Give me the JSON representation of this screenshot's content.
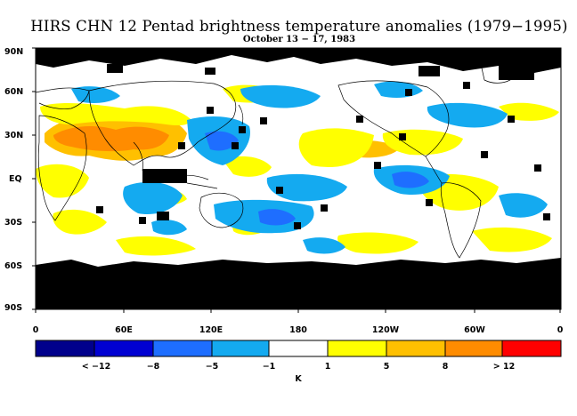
{
  "title": "HIRS CHN 12 Pentad brightness temperature anomalies (1979−1995)",
  "subtitle": "October 13 − 17, 1983",
  "lat_ticks": [
    "90N",
    "60N",
    "30N",
    "EQ",
    "30S",
    "60S",
    "90S"
  ],
  "lon_ticks": [
    "0",
    "60E",
    "120E",
    "180",
    "120W",
    "60W",
    "0"
  ],
  "colorbar": {
    "colors": [
      "#00008c",
      "#0000d2",
      "#1e6eff",
      "#14aaf0",
      "#ffffff",
      "#ffff00",
      "#ffc000",
      "#ff8c00",
      "#ff0000"
    ],
    "labels": [
      "< −12",
      "−8",
      "−5",
      "−1",
      "1",
      "5",
      "8",
      "> 12"
    ],
    "unit": "K"
  },
  "colors": {
    "missing": "#000000",
    "coast": "#000000"
  }
}
